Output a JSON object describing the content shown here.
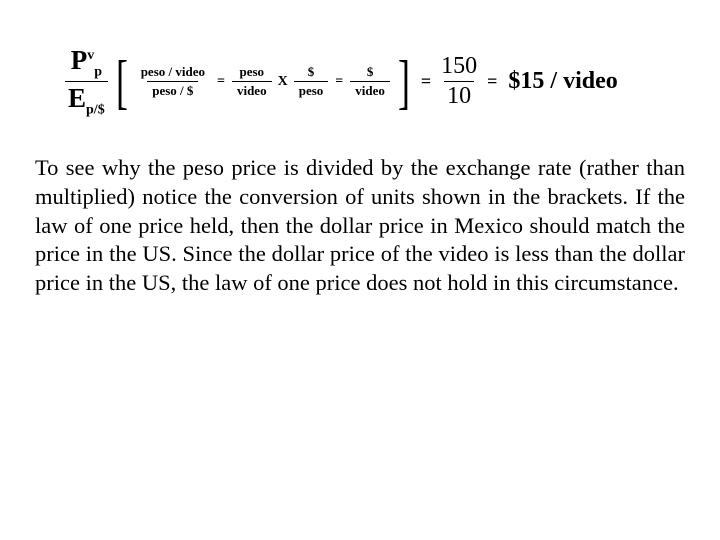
{
  "colors": {
    "text": "#000000",
    "background": "#ffffff"
  },
  "typography": {
    "body_family": "Times New Roman",
    "body_size_pt": 17,
    "equation_main_size_pt": 20,
    "equation_units_size_pt": 10
  },
  "equation": {
    "left_fraction": {
      "num_base": "P",
      "num_sup": "v",
      "num_sub": "p",
      "den_base": "E",
      "den_sub": "p/$"
    },
    "brackets": {
      "open": "[",
      "close": "]"
    },
    "unit_frac1": {
      "num": "peso / video",
      "den": "peso / $"
    },
    "eq1": "=",
    "unit_frac2": {
      "num": "peso",
      "den": "video"
    },
    "times": "X",
    "unit_frac3": {
      "num": "$",
      "den": "peso"
    },
    "eq2": "=",
    "unit_frac4": {
      "num": "$",
      "den": "video"
    },
    "eq3": "=",
    "numeric_frac": {
      "num": "150",
      "den": "10"
    },
    "eq4": "=",
    "result": "$15 / video"
  },
  "paragraph": "To see why the peso price is divided by the exchange rate (rather than multiplied) notice the conversion of units shown in the brackets. If the law of one price held, then the dollar price in Mexico should match the price in the US. Since the dollar price of the video is less than the dollar price in the US, the law of one price does not hold in this circumstance."
}
